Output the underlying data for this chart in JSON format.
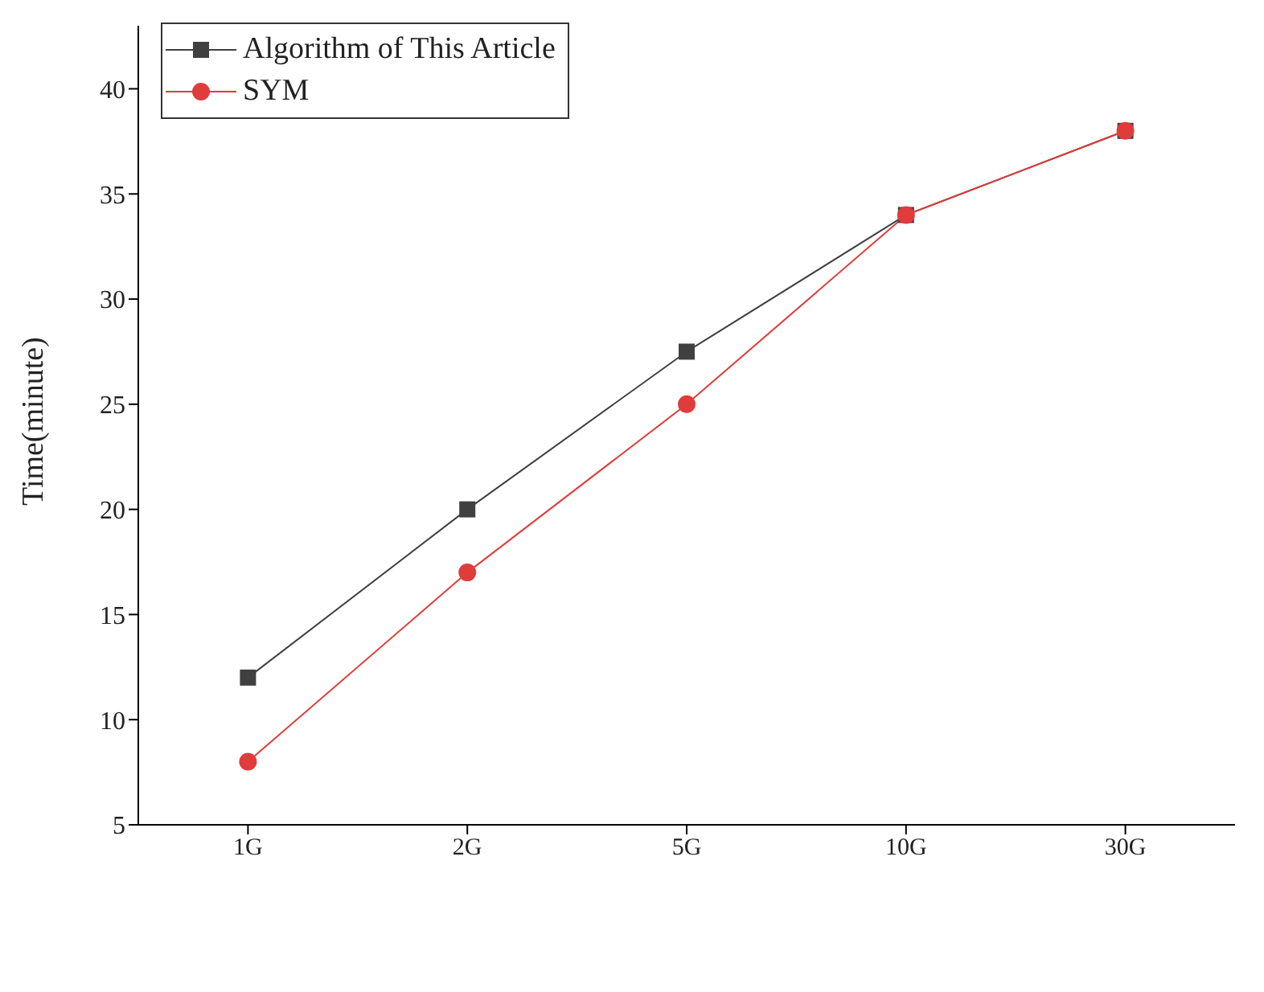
{
  "chart_data": {
    "type": "line",
    "ylabel": "Time(minute)",
    "categories": [
      "1G",
      "2G",
      "5G",
      "10G",
      "30G"
    ],
    "series": [
      {
        "name": "Algorithm of This Article",
        "color": "#404040",
        "marker": "square",
        "values": [
          12,
          20,
          27.5,
          34,
          38
        ]
      },
      {
        "name": "SYM",
        "color": "#e03c3c",
        "marker": "circle",
        "values": [
          8,
          17,
          25,
          34,
          38
        ]
      }
    ],
    "ylim": [
      5,
      43
    ],
    "yticks": [
      5,
      10,
      15,
      20,
      25,
      30,
      35,
      40
    ],
    "grid": false,
    "legend": "top left"
  }
}
